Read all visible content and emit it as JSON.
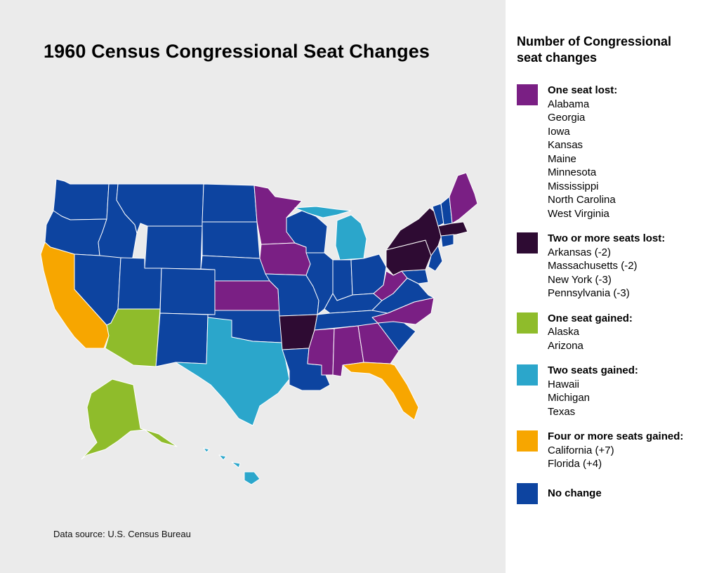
{
  "title": "1960 Census Congressional Seat Changes",
  "source": "Data source: U.S. Census Bureau",
  "legend": {
    "title_line1": "Number of Congressional",
    "title_line2": "seat changes",
    "groups": [
      {
        "label": "One seat lost:",
        "color": "#7a1f84",
        "states": [
          "Alabama",
          "Georgia",
          "Iowa",
          "Kansas",
          "Maine",
          "Minnesota",
          "Mississippi",
          "North Carolina",
          "West Virginia"
        ]
      },
      {
        "label": "Two or more seats lost:",
        "color": "#2e0b33",
        "states": [
          "Arkansas (-2)",
          "Massachusetts (-2)",
          "New York (-3)",
          "Pennsylvania (-3)"
        ]
      },
      {
        "label": "One seat gained:",
        "color": "#8fbc2b",
        "states": [
          "Alaska",
          "Arizona"
        ]
      },
      {
        "label": "Two seats gained:",
        "color": "#2ba6cb",
        "states": [
          "Hawaii",
          "Michigan",
          "Texas"
        ]
      },
      {
        "label": "Four or more seats gained:",
        "color": "#f7a600",
        "states": [
          "California (+7)",
          "Florida (+4)"
        ]
      },
      {
        "label": "No change",
        "color": "#0d44a0",
        "states": []
      }
    ]
  },
  "map_colors": {
    "no_change": "#0d44a0",
    "one_lost": "#7a1f84",
    "two_plus_lost": "#2e0b33",
    "one_gained": "#8fbc2b",
    "two_gained": "#2ba6cb",
    "four_plus_gained": "#f7a600",
    "border": "#ffffff"
  }
}
